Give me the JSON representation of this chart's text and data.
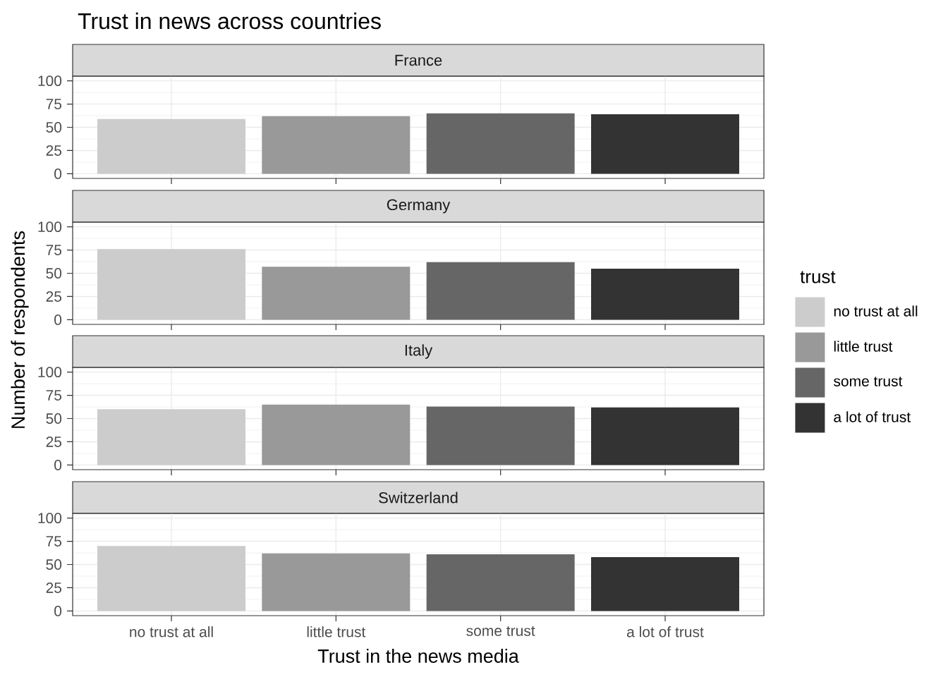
{
  "chart_data": [
    {
      "type": "bar",
      "title": "Trust in news across countries",
      "subtitle": "France",
      "ylabel": "Number of respondents",
      "categories": [
        null,
        null,
        null,
        null
      ],
      "series": [
        {
          "color": "#cccccc",
          "values": [
            59,
            null,
            null,
            null
          ]
        },
        {
          "color": "#999999",
          "values": [
            null,
            62,
            null,
            null
          ]
        },
        {
          "color": "#666666",
          "values": [
            null,
            null,
            65,
            null
          ]
        },
        {
          "color": "#333333",
          "values": [
            null,
            null,
            null,
            64
          ]
        }
      ],
      "ylim": [
        -5,
        105
      ],
      "yticks": [
        0,
        25,
        50,
        75,
        100
      ],
      "grid": true,
      "tick_labels": "y"
    },
    {
      "type": "bar",
      "subtitle": "Germany",
      "categories": [
        null,
        null,
        null,
        null
      ],
      "series": [
        {
          "color": "#cccccc",
          "values": [
            76,
            null,
            null,
            null
          ]
        },
        {
          "color": "#999999",
          "values": [
            null,
            57,
            null,
            null
          ]
        },
        {
          "color": "#666666",
          "values": [
            null,
            null,
            62,
            null
          ]
        },
        {
          "color": "#333333",
          "values": [
            null,
            null,
            null,
            55
          ]
        }
      ],
      "ylim": [
        -5,
        105
      ],
      "yticks": [
        0,
        25,
        50,
        75,
        100
      ],
      "grid": true,
      "tick_labels": "y"
    },
    {
      "type": "bar",
      "subtitle": "Italy",
      "categories": [
        null,
        null,
        null,
        null
      ],
      "series": [
        {
          "color": "#cccccc",
          "values": [
            60,
            null,
            null,
            null
          ]
        },
        {
          "color": "#999999",
          "values": [
            null,
            65,
            null,
            null
          ]
        },
        {
          "color": "#666666",
          "values": [
            null,
            null,
            63,
            null
          ]
        },
        {
          "color": "#333333",
          "values": [
            null,
            null,
            null,
            62
          ]
        }
      ],
      "ylim": [
        -5,
        105
      ],
      "yticks": [
        0,
        25,
        50,
        75,
        100
      ],
      "grid": true,
      "tick_labels": "y"
    },
    {
      "type": "bar",
      "subtitle": "Switzerland",
      "xlabel": "Trust in the news media",
      "legend_title": "trust",
      "legend": "right",
      "categories": [
        "no trust at all",
        "little trust",
        "some trust",
        "a lot of trust"
      ],
      "series": [
        {
          "name": "no trust at all",
          "color": "#cccccc",
          "values": [
            70,
            null,
            null,
            null
          ]
        },
        {
          "name": "little trust",
          "color": "#999999",
          "values": [
            null,
            62,
            null,
            null
          ]
        },
        {
          "name": "some trust",
          "color": "#666666",
          "values": [
            null,
            null,
            61,
            null
          ]
        },
        {
          "name": "a lot of trust",
          "color": "#333333",
          "values": [
            null,
            null,
            null,
            58
          ]
        }
      ],
      "ylim": [
        -5,
        105
      ],
      "yticks": [
        0,
        25,
        50,
        75,
        100
      ],
      "grid": true
    }
  ]
}
